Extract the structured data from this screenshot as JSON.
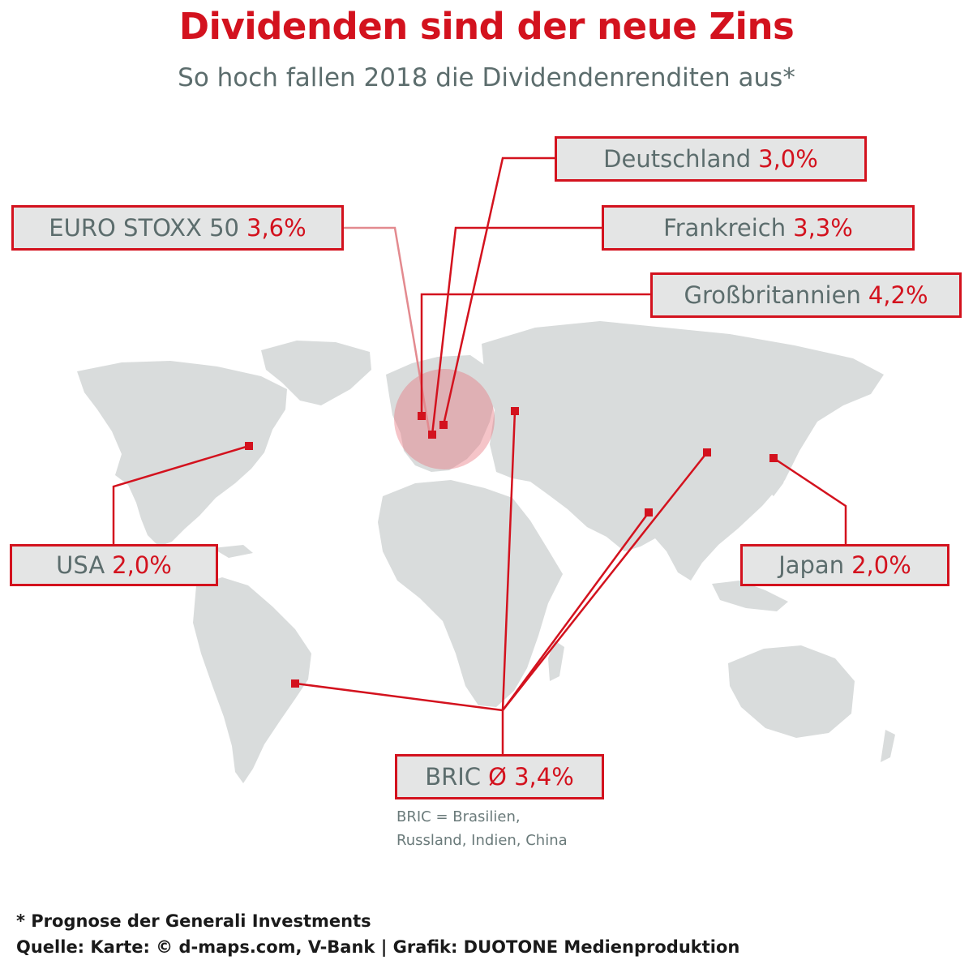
{
  "title": "Dividenden sind der neue Zins",
  "subtitle": "So hoch fallen 2018 die Dividendenrenditen aus*",
  "colors": {
    "accent": "#d3121e",
    "land": "#d9dcdc",
    "label_bg": "#e4e5e5",
    "text_gray": "#5c6d6d"
  },
  "regions": {
    "deutschland": {
      "name": "Deutschland",
      "value": "3,0%"
    },
    "euro_stoxx": {
      "name": "EURO STOXX 50",
      "value": "3,6%"
    },
    "frankreich": {
      "name": "Frankreich",
      "value": "3,3%"
    },
    "grossbritannien": {
      "name": "Großbritannien",
      "value": "4,2%"
    },
    "usa": {
      "name": "USA",
      "value": "2,0%"
    },
    "japan": {
      "name": "Japan",
      "value": "2,0%"
    },
    "bric": {
      "name": "BRIC",
      "value": "Ø 3,4%"
    }
  },
  "bric_note": {
    "line1": "BRIC = Brasilien,",
    "line2": "Russland, Indien, China"
  },
  "footer": {
    "note": "* Prognose der Generali Investments",
    "source": "Quelle: Karte: © d-maps.com, V-Bank | Grafik: DUOTONE Medienproduktion"
  }
}
